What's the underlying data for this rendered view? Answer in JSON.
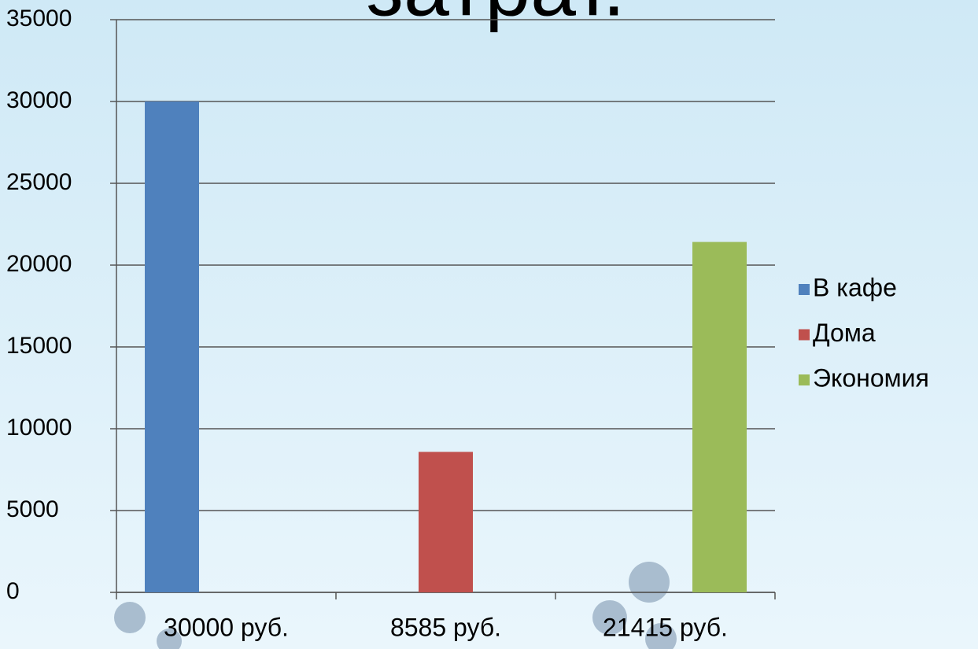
{
  "chart_data": {
    "type": "bar",
    "title": "затрат.",
    "categories": [
      "30000 руб.",
      "8585 руб.",
      "21415 руб."
    ],
    "series": [
      {
        "name": "В кафе",
        "color": "#4f81bd",
        "values": [
          30000,
          null,
          null
        ]
      },
      {
        "name": "Дома",
        "color": "#c0504d",
        "values": [
          null,
          8585,
          null
        ]
      },
      {
        "name": "Экономия",
        "color": "#9bbb59",
        "values": [
          null,
          null,
          21415
        ]
      }
    ],
    "ylim": [
      0,
      35000
    ],
    "yticks": [
      0,
      5000,
      10000,
      15000,
      20000,
      25000,
      30000,
      35000
    ],
    "grid": true,
    "legend": "right"
  }
}
